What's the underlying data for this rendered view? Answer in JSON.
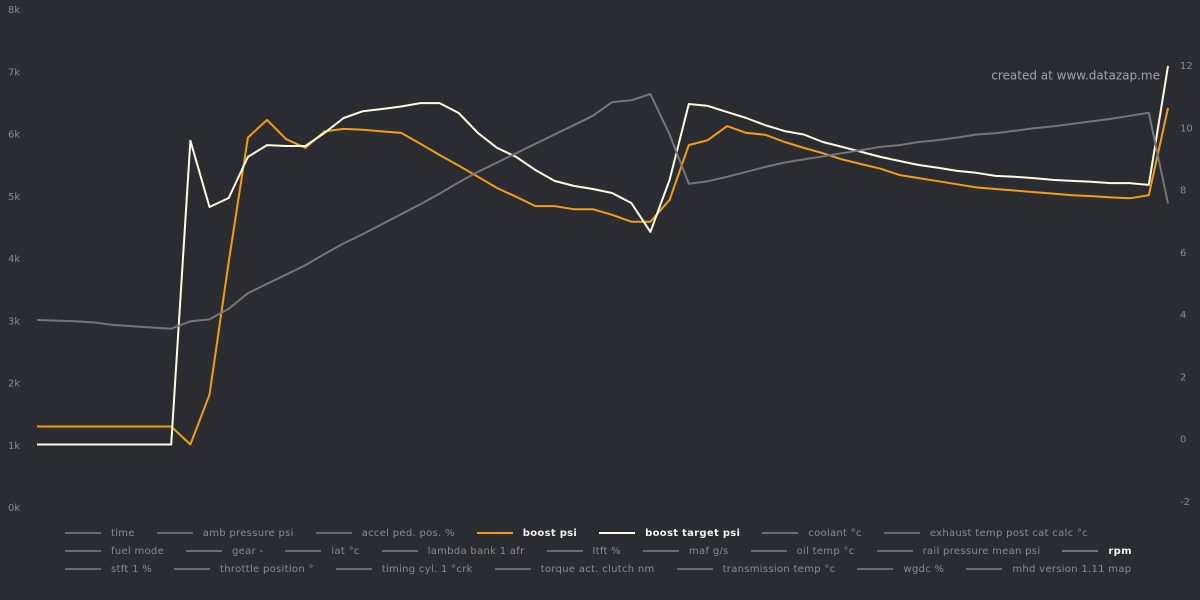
{
  "chart_data": {
    "type": "line",
    "annotation": "created at www.datazap.me",
    "ylim": [
      0,
      8000
    ],
    "yticks": [
      {
        "value": 0,
        "label": "0k"
      },
      {
        "value": 1000,
        "label": "1k"
      },
      {
        "value": 2000,
        "label": "2k"
      },
      {
        "value": 3000,
        "label": "3k"
      },
      {
        "value": 4000,
        "label": "4k"
      },
      {
        "value": 5000,
        "label": "5k"
      },
      {
        "value": 6000,
        "label": "6k"
      },
      {
        "value": 7000,
        "label": "7k"
      },
      {
        "value": 8000,
        "label": "8k"
      }
    ],
    "y2lim": [
      -2.2,
      13.8
    ],
    "y2ticks": [
      -2,
      0,
      2,
      4,
      6,
      8,
      10,
      12
    ],
    "series": [
      {
        "name": "time",
        "color": "#6a6b6f",
        "hidden": true
      },
      {
        "name": "amb pressure psi",
        "color": "#6a6b6f",
        "hidden": true
      },
      {
        "name": "accel ped. pos. %",
        "color": "#6a6b6f",
        "hidden": true
      },
      {
        "name": "boost psi",
        "color": "#f39c1a",
        "axis": "y2",
        "values": [
          0.42,
          0.42,
          0.42,
          0.42,
          0.42,
          0.42,
          0.42,
          0.42,
          -0.16,
          1.44,
          5.7,
          9.7,
          10.27,
          9.65,
          9.37,
          9.9,
          9.98,
          9.95,
          9.9,
          9.85,
          9.5,
          9.14,
          8.8,
          8.44,
          8.08,
          7.8,
          7.5,
          7.5,
          7.4,
          7.4,
          7.22,
          7.0,
          7.0,
          7.7,
          9.46,
          9.62,
          10.07,
          9.85,
          9.79,
          9.56,
          9.37,
          9.2,
          9.0,
          8.85,
          8.7,
          8.5,
          8.4,
          8.3,
          8.2,
          8.1,
          8.05,
          8.0,
          7.95,
          7.9,
          7.85,
          7.82,
          7.78,
          7.75,
          7.85,
          10.65
        ]
      },
      {
        "name": "boost target psi",
        "color": "#fffbe2",
        "axis": "y2",
        "values": [
          -0.16,
          -0.16,
          -0.16,
          -0.16,
          -0.16,
          -0.16,
          -0.16,
          -0.16,
          9.6,
          7.47,
          7.76,
          9.08,
          9.46,
          9.43,
          9.43,
          9.85,
          10.33,
          10.55,
          10.62,
          10.7,
          10.81,
          10.81,
          10.49,
          9.85,
          9.37,
          9.08,
          8.66,
          8.31,
          8.15,
          8.05,
          7.92,
          7.6,
          6.67,
          8.34,
          10.78,
          10.72,
          10.52,
          10.33,
          10.1,
          9.91,
          9.8,
          9.56,
          9.4,
          9.24,
          9.08,
          8.95,
          8.82,
          8.73,
          8.63,
          8.57,
          8.47,
          8.44,
          8.4,
          8.34,
          8.31,
          8.28,
          8.24,
          8.24,
          8.18,
          12
        ]
      },
      {
        "name": "coolant °c",
        "color": "#6a6b6f",
        "hidden": true
      },
      {
        "name": "exhaust temp post cat calc °c",
        "color": "#6a6b6f",
        "hidden": true
      },
      {
        "name": "fuel mode",
        "color": "#6a6b6f",
        "hidden": true
      },
      {
        "name": "gear -",
        "color": "#6a6b6f",
        "hidden": true
      },
      {
        "name": "iat °c",
        "color": "#6a6b6f",
        "hidden": true
      },
      {
        "name": "lambda bank 1 afr",
        "color": "#6a6b6f",
        "hidden": true
      },
      {
        "name": "ltft %",
        "color": "#6a6b6f",
        "hidden": true
      },
      {
        "name": "maf g/s",
        "color": "#6a6b6f",
        "hidden": true
      },
      {
        "name": "oil temp °c",
        "color": "#6a6b6f",
        "hidden": true
      },
      {
        "name": "rail pressure mean psi",
        "color": "#6a6b6f",
        "hidden": true
      },
      {
        "name": "rpm",
        "color": "#75767a",
        "values": [
          3020,
          3010,
          3000,
          2980,
          2940,
          2920,
          2900,
          2880,
          3000,
          3030,
          3200,
          3450,
          3600,
          3750,
          3900,
          4080,
          4250,
          4400,
          4560,
          4720,
          4880,
          5050,
          5230,
          5400,
          5550,
          5700,
          5850,
          6000,
          6150,
          6300,
          6520,
          6550,
          6650,
          6000,
          5210,
          5250,
          5320,
          5400,
          5480,
          5550,
          5600,
          5650,
          5700,
          5750,
          5800,
          5830,
          5880,
          5910,
          5950,
          6000,
          6020,
          6060,
          6100,
          6130,
          6170,
          6210,
          6250,
          6300,
          6350,
          4890
        ]
      },
      {
        "name": "stft 1 %",
        "color": "#6a6b6f",
        "hidden": true
      },
      {
        "name": "throttle position °",
        "color": "#6a6b6f",
        "hidden": true
      },
      {
        "name": "timing cyl. 1 °crk",
        "color": "#6a6b6f",
        "hidden": true
      },
      {
        "name": "torque act. clutch nm",
        "color": "#6a6b6f",
        "hidden": true
      },
      {
        "name": "transmission temp °c",
        "color": "#6a6b6f",
        "hidden": true
      },
      {
        "name": "wgdc %",
        "color": "#6a6b6f",
        "hidden": true
      },
      {
        "name": "mhd version 1.11 map",
        "color": "#6a6b6f",
        "hidden": true
      }
    ]
  }
}
